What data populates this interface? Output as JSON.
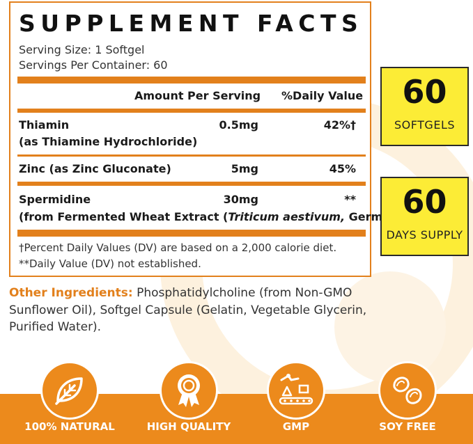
{
  "facts": {
    "title": "SUPPLEMENT FACTS",
    "serving_size": "Serving Size: 1 Softgel",
    "servings_per_container": "Servings Per Container: 60",
    "col_amount": "Amount Per Serving",
    "col_dv": "%Daily Value",
    "rows": [
      {
        "name": "Thiamin",
        "sub": "(as Thiamine Hydrochloride)",
        "amount": "0.5mg",
        "dv": "42%†"
      },
      {
        "name": "Zinc (as Zinc Gluconate)",
        "amount": "5mg",
        "dv": "45%"
      },
      {
        "name": "Spermidine",
        "sub_pre": "(from Fermented Wheat Extract (",
        "sub_italic": "Triticum aestivum,",
        "sub_post": " Germ))",
        "amount": "30mg",
        "dv": "**"
      }
    ],
    "footnote1": "†Percent Daily Values (DV) are based on a 2,000 calorie diet.",
    "footnote2": "**Daily Value (DV) not established."
  },
  "badges": [
    {
      "number": "60",
      "label": "SOFTGELS"
    },
    {
      "number": "60",
      "label": "DAYS SUPPLY"
    }
  ],
  "other_ingredients": {
    "heading": "Other Ingredients:",
    "text": " Phosphatidylcholine (from Non-GMO Sunflower Oil), Softgel Capsule (Gelatin, Vegetable Glycerin, Purified Water)."
  },
  "features": [
    {
      "label": "100% NATURAL",
      "icon": "leaf-icon"
    },
    {
      "label": "HIGH QUALITY",
      "icon": "award-ribbon-icon"
    },
    {
      "label": "GMP",
      "icon": "factory-conveyor-icon"
    },
    {
      "label": "SOY FREE",
      "icon": "soybean-icon"
    }
  ],
  "colors": {
    "accent_orange": "#e2801c",
    "band_orange": "#ec8a1c",
    "badge_yellow": "#fcec36"
  }
}
